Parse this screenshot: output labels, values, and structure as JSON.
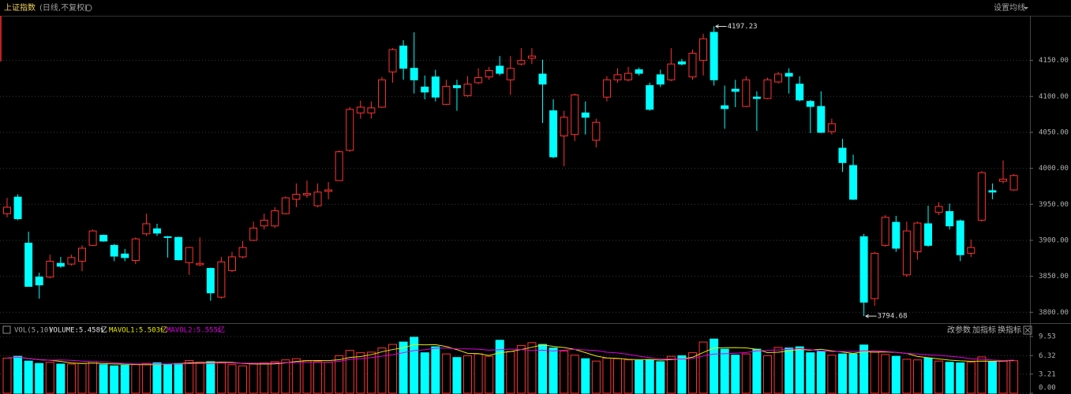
{
  "header": {
    "title": "上证指数",
    "subtitle": "(日线,不复权)",
    "settings": "设置均线"
  },
  "volume_header": {
    "indicator": "VOL(5,10)",
    "volume": "VOLUME:5.458亿",
    "volume_arrow": "↓",
    "mavol1": "MAVOL1:5.503亿",
    "mavol1_arrow": "↑",
    "mavol2": "MAVOL2:5.555亿",
    "mavol2_arrow": "↓",
    "buttons": [
      "改参数",
      "加指标",
      "换指标"
    ]
  },
  "chart_data": [
    {
      "type": "candlestick",
      "up_color": "#ff3232",
      "down_color": "#00ffff",
      "grid": true,
      "ylim": [
        3785,
        4212
      ],
      "yticks": [
        {
          "value": 3800,
          "label": "3800.00"
        },
        {
          "value": 3850,
          "label": "3850.00"
        },
        {
          "value": 3900,
          "label": "3900.00"
        },
        {
          "value": 3950,
          "label": "3950.00"
        },
        {
          "value": 4000,
          "label": "4000.00"
        },
        {
          "value": 4050,
          "label": "4050.00"
        },
        {
          "value": 4100,
          "label": "4100.00"
        },
        {
          "value": 4150,
          "label": "4150.00"
        }
      ],
      "open": [
        3937,
        3960,
        3896,
        3849,
        3849,
        3868,
        3867,
        3871,
        3893,
        3907,
        3893,
        3881,
        3872,
        3909,
        3916,
        3905,
        3904,
        3869,
        3866,
        3861,
        3821,
        3858,
        3877,
        3900,
        3920,
        3920,
        3937,
        3957,
        3963,
        3948,
        3968,
        3983,
        4025,
        4077,
        4077,
        4085,
        4134,
        4170,
        4139,
        4113,
        4127,
        4089,
        4115,
        4101,
        4119,
        4127,
        4142,
        4123,
        4145,
        4153,
        4131,
        4080,
        4045,
        4047,
        4077,
        4039,
        4099,
        4123,
        4123,
        4137,
        4115,
        4130,
        4123,
        4148,
        4127,
        4150,
        4189,
        4087,
        4110,
        4086,
        4099,
        4097,
        4120,
        4132,
        4117,
        4093,
        4086,
        4051,
        4028,
        4004,
        3905,
        3819,
        3893,
        3925,
        3852,
        3884,
        3923,
        3939,
        3940,
        3927,
        3882,
        3928,
        3969,
        3982,
        3970
      ],
      "high": [
        3959,
        3964,
        3912,
        3855,
        3880,
        3877,
        3880,
        3893,
        3915,
        3908,
        3895,
        3888,
        3904,
        3937,
        3923,
        3906,
        3905,
        3891,
        3904,
        3862,
        3877,
        3884,
        3899,
        3926,
        3937,
        3946,
        3961,
        3979,
        3983,
        3979,
        3981,
        4025,
        4085,
        4094,
        4093,
        4127,
        4167,
        4178,
        4189,
        4129,
        4137,
        4123,
        4123,
        4128,
        4139,
        4141,
        4156,
        4156,
        4167,
        4167,
        4151,
        4096,
        4080,
        4104,
        4093,
        4069,
        4128,
        4139,
        4141,
        4140,
        4119,
        4137,
        4167,
        4152,
        4165,
        4187,
        4197.23,
        4115,
        4123,
        4128,
        4107,
        4126,
        4134,
        4139,
        4128,
        4095,
        4107,
        4069,
        4041,
        4019,
        3909,
        3884,
        3935,
        3934,
        3926,
        3926,
        3948,
        3953,
        3951,
        3929,
        3901,
        3996,
        3979,
        4011,
        3992
      ],
      "low": [
        3932,
        3928,
        3836,
        3819,
        3847,
        3862,
        3865,
        3857,
        3892,
        3898,
        3871,
        3871,
        3867,
        3906,
        3906,
        3876,
        3872,
        3852,
        3864,
        3816,
        3819,
        3856,
        3875,
        3899,
        3915,
        3917,
        3936,
        3946,
        3959,
        3946,
        3957,
        3983,
        4023,
        4069,
        4069,
        4084,
        4119,
        4123,
        4104,
        4096,
        4093,
        4088,
        4080,
        4099,
        4117,
        4123,
        4129,
        4102,
        4143,
        4145,
        4063,
        4014,
        4003,
        4038,
        4047,
        4029,
        4093,
        4119,
        4121,
        4129,
        4080,
        4113,
        4121,
        4143,
        4123,
        4129,
        4115,
        4055,
        4085,
        4085,
        4052,
        4096,
        4118,
        4104,
        4093,
        4049,
        4049,
        4047,
        3995,
        3956,
        3794.68,
        3809,
        3891,
        3884,
        3849,
        3873,
        3891,
        3935,
        3915,
        3871,
        3877,
        3926,
        3957,
        3979,
        3969
      ],
      "close": [
        3946,
        3930,
        3836,
        3838,
        3871,
        3864,
        3876,
        3889,
        3913,
        3899,
        3878,
        3876,
        3902,
        3923,
        3910,
        3904,
        3873,
        3890,
        3868,
        3827,
        3870,
        3877,
        3890,
        3917,
        3928,
        3941,
        3959,
        3964,
        3965,
        3967,
        3970,
        4023,
        4082,
        4085,
        4084,
        4123,
        4165,
        4139,
        4123,
        4106,
        4099,
        4114,
        4112,
        4117,
        4126,
        4136,
        4132,
        4139,
        4150,
        4156,
        4117,
        4016,
        4071,
        4102,
        4071,
        4064,
        4123,
        4130,
        4132,
        4132,
        4082,
        4117,
        4145,
        4145,
        4160,
        4180,
        4123,
        4083,
        4107,
        4123,
        4097,
        4123,
        4131,
        4128,
        4095,
        4086,
        4050,
        4062,
        4008,
        3957,
        3814,
        3882,
        3932,
        3889,
        3913,
        3924,
        3893,
        3947,
        3920,
        3880,
        3890,
        3994,
        3967,
        3985,
        3990
      ]
    },
    {
      "type": "bar",
      "grid": true,
      "ylim": [
        0,
        9.93
      ],
      "yticks": [
        {
          "value": 0,
          "label": "0.00"
        },
        3.21,
        6.32,
        9.53
      ],
      "values": [
        5.9,
        6.2,
        5.4,
        5.0,
        5.2,
        4.9,
        4.9,
        5.0,
        5.3,
        4.8,
        4.6,
        4.7,
        4.8,
        5.0,
        5.1,
        4.9,
        5.0,
        5.5,
        5.2,
        5.3,
        5.1,
        4.8,
        4.6,
        4.9,
        5.1,
        5.3,
        5.6,
        5.8,
        5.5,
        5.3,
        5.2,
        6.3,
        7.2,
        6.8,
        6.9,
        7.6,
        8.2,
        8.6,
        9.4,
        6.8,
        7.8,
        6.6,
        6.0,
        6.3,
        6.6,
        6.2,
        8.9,
        7.0,
        8.0,
        8.5,
        8.2,
        7.6,
        7.1,
        6.4,
        5.8,
        5.4,
        5.9,
        5.8,
        5.6,
        5.5,
        5.6,
        5.3,
        6.2,
        6.3,
        6.8,
        8.6,
        9.1,
        7.4,
        6.4,
        6.6,
        7.4,
        6.3,
        7.7,
        7.6,
        7.8,
        6.8,
        7.0,
        6.4,
        6.6,
        6.6,
        8.1,
        6.9,
        6.5,
        6.2,
        5.7,
        5.6,
        5.9,
        5.4,
        5.2,
        5.1,
        5.2,
        6.1,
        5.3,
        5.4,
        5.458
      ],
      "series": [
        {
          "name": "MAVOL1",
          "color": "#e8e800",
          "values": [
            5.9,
            6.05,
            5.83,
            5.63,
            5.54,
            5.34,
            5.08,
            5.0,
            5.06,
            4.98,
            4.92,
            4.88,
            4.84,
            4.78,
            4.84,
            4.9,
            4.96,
            5.1,
            5.14,
            5.18,
            5.22,
            5.18,
            5.0,
            4.94,
            4.9,
            4.94,
            5.1,
            5.34,
            5.46,
            5.5,
            5.48,
            5.62,
            6.0,
            6.16,
            6.48,
            6.96,
            7.34,
            7.62,
            8.18,
            8.12,
            8.16,
            7.84,
            7.32,
            6.7,
            6.66,
            6.34,
            6.8,
            7.0,
            7.34,
            7.72,
            8.12,
            7.86,
            7.68,
            7.36,
            6.82,
            6.26,
            5.92,
            5.86,
            5.7,
            5.64,
            5.68,
            5.56,
            5.64,
            5.78,
            6.04,
            6.84,
            7.6,
            7.64,
            7.66,
            7.62,
            7.38,
            6.82,
            6.88,
            7.12,
            7.36,
            7.24,
            7.38,
            7.12,
            6.92,
            6.68,
            6.98,
            6.92,
            6.94,
            6.86,
            6.68,
            6.18,
            5.98,
            5.76,
            5.56,
            5.44,
            5.36,
            5.4,
            5.38,
            5.42,
            5.503
          ]
        },
        {
          "name": "MAVOL2",
          "color": "#e000e0",
          "values": [
            5.9,
            6.05,
            5.83,
            5.63,
            5.54,
            5.6,
            5.52,
            5.4,
            5.3,
            5.26,
            5.13,
            4.98,
            4.92,
            4.92,
            4.91,
            4.91,
            4.92,
            4.97,
            4.96,
            5.01,
            5.06,
            5.07,
            5.05,
            5.04,
            5.04,
            5.08,
            5.14,
            5.17,
            5.2,
            5.2,
            5.21,
            5.36,
            5.67,
            5.81,
            5.99,
            6.22,
            6.47,
            6.81,
            7.17,
            7.3,
            7.56,
            7.59,
            7.47,
            7.44,
            7.39,
            7.23,
            7.32,
            7.42,
            7.33,
            7.19,
            7.23,
            7.1,
            7.24,
            7.36,
            7.27,
            7.19,
            6.89,
            6.77,
            6.53,
            6.23,
            5.97,
            5.74,
            5.75,
            5.74,
            5.84,
            6.26,
            6.58,
            6.64,
            6.72,
            6.83,
            7.11,
            7.22,
            7.26,
            7.39,
            7.49,
            7.31,
            7.1,
            7.0,
            7.02,
            7.02,
            7.11,
            7.15,
            7.03,
            6.89,
            6.68,
            6.58,
            6.45,
            6.35,
            6.21,
            6.06,
            5.77,
            5.69,
            5.57,
            5.49,
            5.555
          ]
        }
      ]
    }
  ]
}
